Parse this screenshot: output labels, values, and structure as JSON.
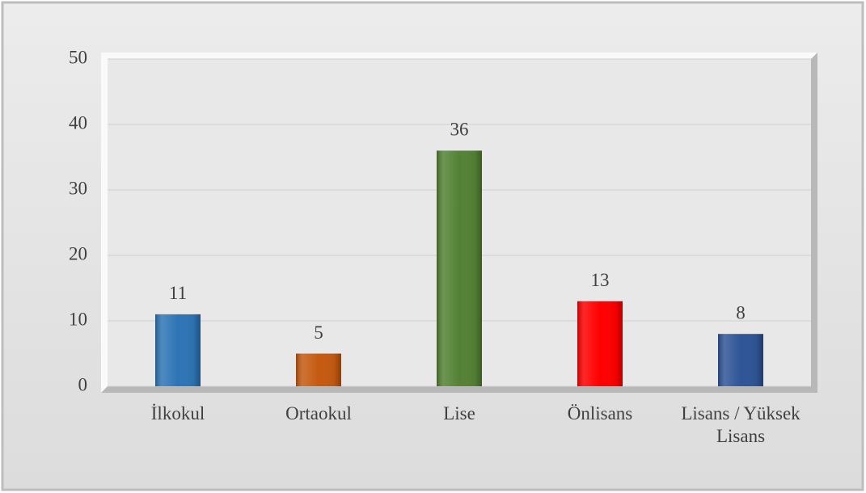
{
  "chart_data": {
    "type": "bar",
    "categories": [
      "İlkokul",
      "Ortaokul",
      "Lise",
      "Önlisans",
      "Lisans / Yüksek Lisans"
    ],
    "values": [
      11,
      5,
      36,
      13,
      8
    ],
    "colors": [
      "#2e75b6",
      "#c55a11",
      "#548235",
      "#ff0000",
      "#2f5597"
    ],
    "ylim": [
      0,
      50
    ],
    "yticks": [
      0,
      10,
      20,
      30,
      40,
      50
    ],
    "grid": true,
    "data_labels": true
  }
}
